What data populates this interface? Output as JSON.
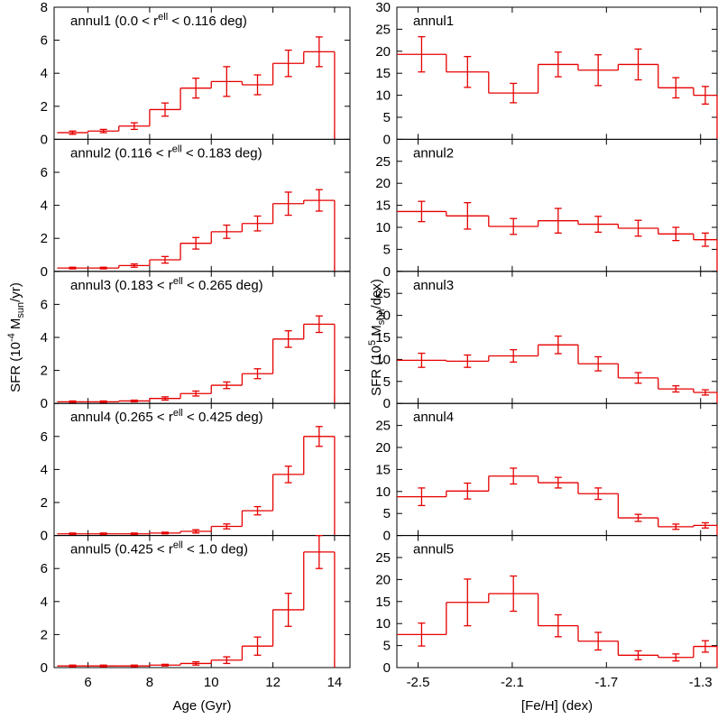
{
  "chart_data": [
    {
      "type": "histogram",
      "title": [
        "annul1 (0.0 < r",
        "ell",
        " < 0.116 deg)"
      ],
      "color": "#e60000",
      "bins": [
        5,
        6,
        7,
        8,
        9,
        10,
        11,
        12,
        13,
        14
      ],
      "values": [
        0.4,
        0.5,
        0.8,
        1.8,
        3.1,
        3.5,
        3.3,
        4.6,
        5.3
      ],
      "errors": [
        0.1,
        0.1,
        0.2,
        0.4,
        0.6,
        0.9,
        0.6,
        0.8,
        0.9
      ],
      "xlim": [
        4.9,
        14.5
      ],
      "ylim": [
        0,
        8
      ],
      "yticks": [
        0,
        2,
        4,
        6,
        8
      ]
    },
    {
      "type": "histogram",
      "title": [
        "annul2 (0.116 < r",
        "ell",
        " < 0.183 deg)"
      ],
      "color": "#e60000",
      "bins": [
        5,
        6,
        7,
        8,
        9,
        10,
        11,
        12,
        13,
        14
      ],
      "values": [
        0.2,
        0.2,
        0.35,
        0.7,
        1.7,
        2.4,
        2.9,
        4.1,
        4.3
      ],
      "errors": [
        0.05,
        0.05,
        0.1,
        0.2,
        0.35,
        0.4,
        0.45,
        0.7,
        0.65
      ],
      "xlim": [
        4.9,
        14.5
      ],
      "ylim": [
        0,
        8
      ],
      "yticks": [
        0,
        2,
        4,
        6
      ]
    },
    {
      "type": "histogram",
      "title": [
        "annul3 (0.183 < r",
        "ell",
        " < 0.265 deg)"
      ],
      "color": "#e60000",
      "bins": [
        5,
        6,
        7,
        8,
        9,
        10,
        11,
        12,
        13,
        14
      ],
      "values": [
        0.1,
        0.1,
        0.15,
        0.3,
        0.6,
        1.1,
        1.8,
        3.9,
        4.8
      ],
      "errors": [
        0.05,
        0.05,
        0.05,
        0.1,
        0.15,
        0.2,
        0.3,
        0.5,
        0.5
      ],
      "xlim": [
        4.9,
        14.5
      ],
      "ylim": [
        0,
        8
      ],
      "yticks": [
        0,
        2,
        4,
        6
      ],
      "ylabel": [
        "SFR (10",
        "-4",
        " M",
        "sun",
        "/yr)"
      ]
    },
    {
      "type": "histogram",
      "title": [
        "annul4 (0.265 < r",
        "ell",
        " < 0.425 deg)"
      ],
      "color": "#e60000",
      "bins": [
        5,
        6,
        7,
        8,
        9,
        10,
        11,
        12,
        13,
        14
      ],
      "values": [
        0.1,
        0.1,
        0.1,
        0.15,
        0.25,
        0.55,
        1.5,
        3.7,
        6.0
      ],
      "errors": [
        0.05,
        0.05,
        0.05,
        0.05,
        0.1,
        0.15,
        0.25,
        0.5,
        0.6
      ],
      "xlim": [
        4.9,
        14.5
      ],
      "ylim": [
        0,
        8
      ],
      "yticks": [
        0,
        2,
        4,
        6
      ]
    },
    {
      "type": "histogram",
      "title": [
        "annul5 (0.425 < r",
        "ell",
        " < 1.0 deg)"
      ],
      "color": "#e60000",
      "bins": [
        5,
        6,
        7,
        8,
        9,
        10,
        11,
        12,
        13,
        14
      ],
      "values": [
        0.1,
        0.1,
        0.1,
        0.15,
        0.25,
        0.45,
        1.3,
        3.5,
        7.0
      ],
      "errors": [
        0.05,
        0.05,
        0.05,
        0.05,
        0.1,
        0.2,
        0.55,
        1.0,
        1.0
      ],
      "xlim": [
        4.9,
        14.5
      ],
      "ylim": [
        0,
        8
      ],
      "yticks": [
        0,
        2,
        4,
        6
      ],
      "xticks": [
        6,
        8,
        10,
        12,
        14
      ],
      "xlabel": "Age (Gyr)"
    },
    {
      "type": "histogram",
      "title": [
        "annul1"
      ],
      "color": "#e60000",
      "bins": [
        -2.59,
        -2.38,
        -2.2,
        -1.99,
        -1.82,
        -1.65,
        -1.48,
        -1.33,
        -1.23
      ],
      "values": [
        19.3,
        15.3,
        10.5,
        17,
        15.7,
        17,
        11.7,
        10
      ],
      "errors": [
        4,
        3.5,
        2.2,
        2.8,
        3.5,
        3.5,
        2.3,
        2
      ],
      "xlim": [
        -2.59,
        -1.23
      ],
      "ylim": [
        0,
        30
      ],
      "yticks": [
        0,
        5,
        10,
        15,
        20,
        25,
        30
      ]
    },
    {
      "type": "histogram",
      "title": [
        "annul2"
      ],
      "color": "#e60000",
      "bins": [
        -2.59,
        -2.38,
        -2.2,
        -1.99,
        -1.82,
        -1.65,
        -1.48,
        -1.33,
        -1.23
      ],
      "values": [
        13.6,
        12.6,
        10.2,
        11.5,
        10.7,
        9.8,
        8.5,
        7.2
      ],
      "errors": [
        2.3,
        3,
        1.8,
        2.8,
        1.8,
        1.8,
        1.5,
        1.5
      ],
      "xlim": [
        -2.59,
        -1.23
      ],
      "ylim": [
        0,
        30
      ],
      "yticks": [
        0,
        5,
        10,
        15,
        20,
        25
      ]
    },
    {
      "type": "histogram",
      "title": [
        "annul3"
      ],
      "color": "#e60000",
      "bins": [
        -2.59,
        -2.38,
        -2.2,
        -1.99,
        -1.82,
        -1.65,
        -1.48,
        -1.33,
        -1.23
      ],
      "values": [
        9.8,
        9.6,
        10.8,
        13.3,
        9,
        5.8,
        3.3,
        2.5
      ],
      "errors": [
        1.6,
        1.4,
        1.4,
        2,
        1.6,
        1.2,
        0.7,
        0.6
      ],
      "xlim": [
        -2.59,
        -1.23
      ],
      "ylim": [
        0,
        30
      ],
      "yticks": [
        0,
        5,
        10,
        15,
        20,
        25
      ],
      "ylabel": [
        "SFR (10",
        "5",
        " M",
        "sun",
        "/dex)"
      ]
    },
    {
      "type": "histogram",
      "title": [
        "annul4"
      ],
      "color": "#e60000",
      "bins": [
        -2.59,
        -2.38,
        -2.2,
        -1.99,
        -1.82,
        -1.65,
        -1.48,
        -1.33,
        -1.23
      ],
      "values": [
        8.8,
        10.1,
        13.5,
        12,
        9.5,
        4,
        2,
        2.3
      ],
      "errors": [
        2,
        1.8,
        1.8,
        1.2,
        1.3,
        0.8,
        0.6,
        0.6
      ],
      "xlim": [
        -2.59,
        -1.23
      ],
      "ylim": [
        0,
        30
      ],
      "yticks": [
        0,
        5,
        10,
        15,
        20,
        25
      ]
    },
    {
      "type": "histogram",
      "title": [
        "annul5"
      ],
      "color": "#e60000",
      "bins": [
        -2.59,
        -2.38,
        -2.2,
        -1.99,
        -1.82,
        -1.65,
        -1.48,
        -1.33,
        -1.23
      ],
      "values": [
        7.5,
        14.8,
        16.8,
        9.5,
        6,
        2.8,
        2.3,
        4.8
      ],
      "errors": [
        2.6,
        5.3,
        4,
        2.5,
        2,
        1,
        0.8,
        1.3
      ],
      "xlim": [
        -2.59,
        -1.23
      ],
      "ylim": [
        0,
        30
      ],
      "yticks": [
        0,
        5,
        10,
        15,
        20,
        25
      ],
      "xticks": [
        -2.5,
        -2.1,
        -1.7,
        -1.3
      ],
      "xlabel": "[Fe/H] (dex)"
    }
  ]
}
